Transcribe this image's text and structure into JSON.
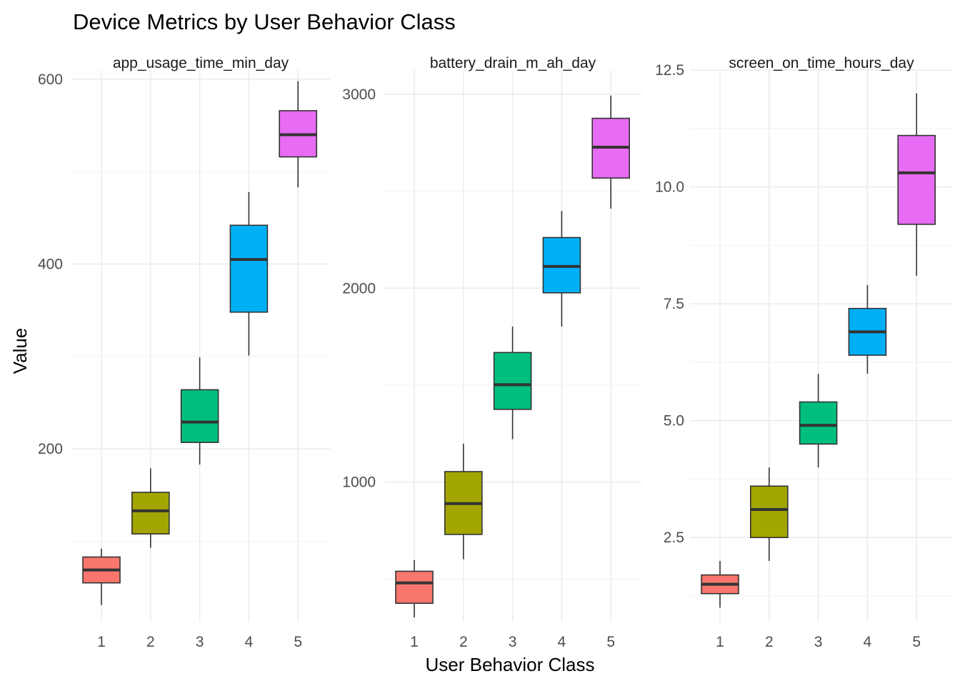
{
  "chart_data": {
    "type": "boxplot",
    "title": "Device Metrics by User Behavior Class",
    "xlabel": "User Behavior Class",
    "ylabel": "Value",
    "categories": [
      "1",
      "2",
      "3",
      "4",
      "5"
    ],
    "colors": [
      "#F8766D",
      "#A3A500",
      "#00BF7D",
      "#00B0F6",
      "#E76BF3"
    ],
    "legend": "none",
    "grid": true,
    "panels": [
      {
        "name": "app_usage_time_min_day",
        "ylim": [
          13,
          610
        ],
        "yticks": [
          200,
          400,
          600
        ],
        "ytick_labels": [
          "200",
          "400",
          "600"
        ],
        "boxes": [
          {
            "category": "1",
            "min": 31,
            "q1": 55,
            "median": 69,
            "q3": 83,
            "max": 92
          },
          {
            "category": "2",
            "min": 93,
            "q1": 108,
            "median": 133,
            "q3": 153,
            "max": 179
          },
          {
            "category": "3",
            "min": 183,
            "q1": 207,
            "median": 229,
            "q3": 264,
            "max": 299
          },
          {
            "category": "4",
            "min": 301,
            "q1": 348,
            "median": 405,
            "q3": 442,
            "max": 478
          },
          {
            "category": "5",
            "min": 483,
            "q1": 516,
            "median": 540,
            "q3": 566,
            "max": 598
          }
        ]
      },
      {
        "name": "battery_drain_m_ah_day",
        "ylim": [
          280,
          3125
        ],
        "yticks": [
          1000,
          2000,
          3000
        ],
        "ytick_labels": [
          "1000",
          "2000",
          "3000"
        ],
        "boxes": [
          {
            "category": "1",
            "min": 302,
            "q1": 375,
            "median": 480,
            "q3": 540,
            "max": 598
          },
          {
            "category": "2",
            "min": 602,
            "q1": 730,
            "median": 889,
            "q3": 1054,
            "max": 1198
          },
          {
            "category": "3",
            "min": 1221,
            "q1": 1375,
            "median": 1502,
            "q3": 1668,
            "max": 1802
          },
          {
            "category": "4",
            "min": 1802,
            "q1": 1976,
            "median": 2112,
            "q3": 2261,
            "max": 2398
          },
          {
            "category": "5",
            "min": 2410,
            "q1": 2568,
            "median": 2727,
            "q3": 2876,
            "max": 2993
          }
        ]
      },
      {
        "name": "screen_on_time_hours_day",
        "ylim": [
          0.7,
          12.5
        ],
        "yticks": [
          2.5,
          5.0,
          7.5,
          10.0,
          12.5
        ],
        "ytick_labels": [
          "2.5",
          "5.0",
          "7.5",
          "10.0",
          "12.5"
        ],
        "boxes": [
          {
            "category": "1",
            "min": 1.0,
            "q1": 1.3,
            "median": 1.5,
            "q3": 1.7,
            "max": 2.0
          },
          {
            "category": "2",
            "min": 2.0,
            "q1": 2.5,
            "median": 3.1,
            "q3": 3.6,
            "max": 4.0
          },
          {
            "category": "3",
            "min": 4.0,
            "q1": 4.5,
            "median": 4.9,
            "q3": 5.4,
            "max": 6.0
          },
          {
            "category": "4",
            "min": 6.0,
            "q1": 6.4,
            "median": 6.9,
            "q3": 7.4,
            "max": 7.9
          },
          {
            "category": "5",
            "min": 8.1,
            "q1": 9.2,
            "median": 10.3,
            "q3": 11.1,
            "max": 12.0
          }
        ]
      }
    ]
  }
}
